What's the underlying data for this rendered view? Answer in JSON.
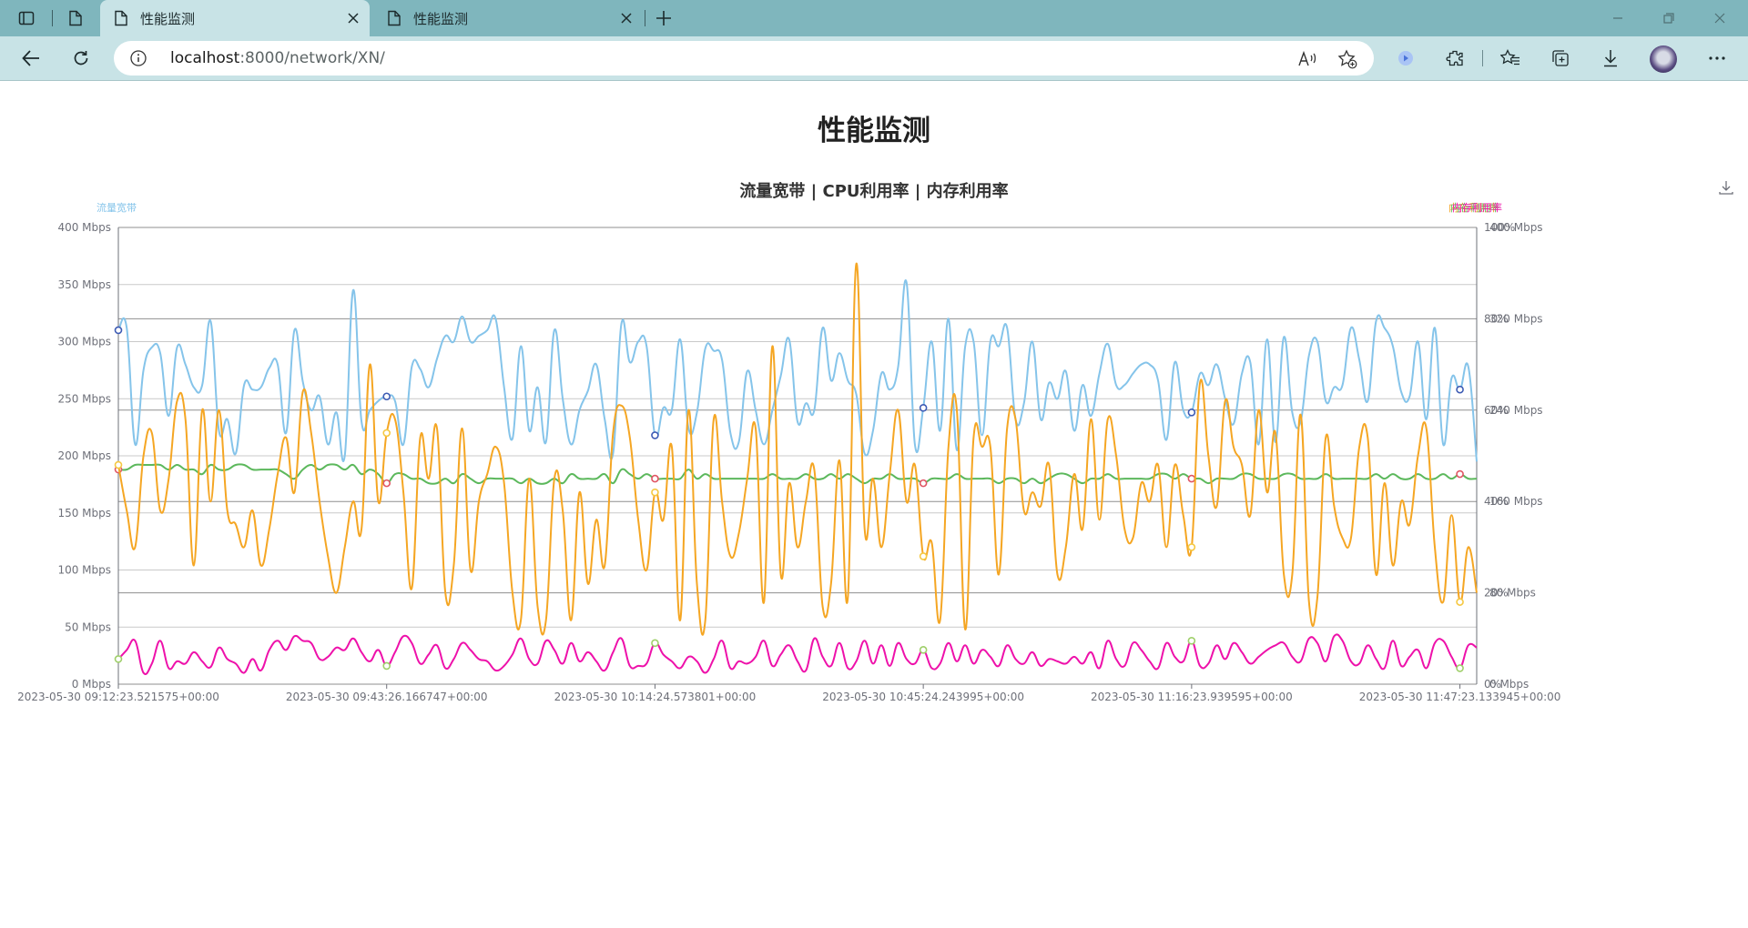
{
  "browser": {
    "tabs": [
      {
        "label": "性能监测",
        "active": true
      },
      {
        "label": "性能监测",
        "active": false
      }
    ],
    "url_host": "localhost",
    "url_rest": ":8000/network/XN/",
    "icons": [
      "tab-actions-icon",
      "page-icon",
      "close-icon",
      "new-tab-icon",
      "minimize-icon",
      "restore-icon",
      "window-close-icon",
      "back-icon",
      "refresh-icon",
      "info-icon",
      "read-aloud-icon",
      "add-favorite-icon",
      "copilot-icon",
      "extensions-icon",
      "favorites-icon",
      "collections-icon",
      "downloads-icon",
      "avatar",
      "more-icon"
    ]
  },
  "page": {
    "title": "性能监测"
  },
  "chart_data": {
    "type": "line",
    "title": "流量宽带 | CPU利用率 | 内存利用率",
    "legend": {
      "left": "流量宽带",
      "right": "内存利用率",
      "placement": "top-left / top-right"
    },
    "colors": {
      "blue": "#85c4ea",
      "orange": "#f5a623",
      "green": "#5cb85c",
      "magenta": "#ee11aa",
      "marker_blue": "#3d5bb4",
      "marker_red": "#e05563",
      "marker_orange": "#f5c842",
      "marker_green": "#9fcf6a"
    },
    "x_labels": [
      "2023-05-30 09:12:23.521575+00:00",
      "2023-05-30 09:43:26.166747+00:00",
      "2023-05-30 10:14:24.573801+00:00",
      "2023-05-30 10:45:24.243995+00:00",
      "2023-05-30 11:16:23.939595+00:00",
      "2023-05-30 11:47:23.133945+00:00"
    ],
    "y_left": {
      "ticks": [
        "0 Mbps",
        "50 Mbps",
        "100 Mbps",
        "150 Mbps",
        "200 Mbps",
        "250 Mbps",
        "300 Mbps",
        "350 Mbps",
        "400 Mbps"
      ],
      "ylim": [
        0,
        400
      ]
    },
    "y_right_percent": {
      "ticks": [
        "0%",
        "20%",
        "40%",
        "60%",
        "80%",
        "100%"
      ],
      "ylim": [
        0,
        100
      ]
    },
    "y_right_mbps": {
      "ticks": [
        "0 Mbps",
        "80 Mbps",
        "160 Mbps",
        "240 Mbps",
        "320 Mbps",
        "400 Mbps"
      ],
      "ylim": [
        0,
        400
      ]
    },
    "series": [
      {
        "name": "流量宽带",
        "color": "#85c4ea",
        "axis": "left",
        "values": [
          310,
          312,
          210,
          275,
          295,
          290,
          235,
          295,
          280,
          260,
          262,
          318,
          222,
          232,
          202,
          262,
          258,
          260,
          277,
          280,
          220,
          310,
          265,
          240,
          252,
          210,
          238,
          200,
          345,
          230,
          240,
          248,
          252,
          248,
          210,
          278,
          276,
          260,
          285,
          305,
          300,
          322,
          300,
          305,
          310,
          320,
          260,
          215,
          296,
          222,
          260,
          212,
          310,
          250,
          210,
          240,
          257,
          280,
          232,
          202,
          316,
          282,
          300,
          296,
          218,
          242,
          240,
          302,
          224,
          238,
          294,
          292,
          284,
          220,
          212,
          274,
          240,
          210,
          240,
          270,
          302,
          230,
          246,
          240,
          312,
          266,
          290,
          266,
          254,
          202,
          222,
          272,
          258,
          278,
          352,
          210,
          242,
          300,
          222,
          320,
          205,
          296,
          300,
          218,
          300,
          296,
          312,
          232,
          246,
          300,
          232,
          264,
          250,
          274,
          222,
          262,
          235,
          272,
          298,
          262,
          262,
          272,
          280,
          280,
          266,
          214,
          282,
          240,
          238,
          272,
          262,
          280,
          250,
          228,
          272,
          282,
          210,
          302,
          212,
          304,
          238,
          230,
          288,
          300,
          248,
          260,
          262,
          312,
          284,
          248,
          318,
          312,
          296,
          256,
          252,
          300,
          232,
          312,
          210,
          268,
          258,
          278,
          195
        ]
      },
      {
        "name": "CPU利用率",
        "color": "#f5a623",
        "axis": "right_percent",
        "values": [
          48,
          38,
          30,
          50,
          55,
          38,
          45,
          62,
          58,
          26,
          60,
          40,
          60,
          38,
          35,
          30,
          38,
          26,
          34,
          46,
          54,
          42,
          64,
          55,
          40,
          28,
          20,
          30,
          40,
          34,
          70,
          40,
          55,
          58,
          42,
          21,
          54,
          45,
          56,
          20,
          26,
          56,
          25,
          40,
          46,
          52,
          44,
          20,
          14,
          45,
          17,
          14,
          45,
          38,
          14,
          42,
          22,
          36,
          26,
          55,
          61,
          54,
          36,
          25,
          42,
          36,
          52,
          14,
          60,
          22,
          14,
          58,
          40,
          28,
          33,
          45,
          56,
          18,
          74,
          24,
          44,
          30,
          40,
          47,
          17,
          22,
          49,
          19,
          92,
          34,
          45,
          30,
          46,
          60,
          40,
          48,
          28,
          31,
          14,
          52,
          60,
          12,
          54,
          52,
          52,
          24,
          56,
          58,
          38,
          42,
          39,
          48,
          24,
          30,
          46,
          34,
          58,
          36,
          58,
          50,
          34,
          32,
          44,
          40,
          48,
          30,
          48,
          37,
          30,
          66,
          50,
          39,
          62,
          52,
          48,
          37,
          60,
          42,
          55,
          24,
          24,
          59,
          18,
          19,
          54,
          39,
          32,
          32,
          52,
          54,
          24,
          44,
          26,
          40,
          35,
          50,
          56,
          30,
          18,
          37,
          18,
          30,
          20
        ]
      },
      {
        "name": "内存利用率",
        "color": "#5cb85c",
        "axis": "right_percent",
        "values": [
          47,
          47,
          48,
          48,
          48,
          48,
          47,
          48,
          47,
          47,
          46,
          48,
          47,
          47,
          48,
          48,
          47,
          47,
          47,
          47,
          46,
          45,
          47,
          48,
          47,
          48,
          48,
          47,
          48,
          46,
          47,
          46,
          44,
          46,
          46,
          45,
          45,
          44,
          44,
          45,
          44,
          46,
          45,
          44,
          45,
          45,
          45,
          45,
          44,
          45,
          44,
          44,
          45,
          44,
          46,
          45,
          45,
          45,
          46,
          44,
          47,
          46,
          45,
          46,
          45,
          45,
          45,
          45,
          47,
          45,
          46,
          45,
          45,
          45,
          45,
          45,
          45,
          45,
          46,
          45,
          45,
          45,
          46,
          45,
          45,
          46,
          45,
          46,
          45,
          44,
          45,
          45,
          46,
          45,
          45,
          45,
          44,
          45,
          45,
          45,
          46,
          45,
          45,
          45,
          45,
          44,
          45,
          45,
          44,
          45,
          44,
          45,
          46,
          46,
          45,
          44,
          45,
          45,
          46,
          45,
          45,
          45,
          45,
          45,
          46,
          46,
          45,
          46,
          45,
          45,
          44,
          45,
          45,
          45,
          46,
          46,
          45,
          45,
          45,
          46,
          46,
          45,
          45,
          45,
          46,
          45,
          45,
          45,
          45,
          45,
          46,
          45,
          46,
          45,
          45,
          46,
          45,
          45,
          46,
          45,
          46,
          45,
          45
        ]
      },
      {
        "name": "",
        "color": "#ee11aa",
        "axis": "left",
        "values": [
          22,
          30,
          38,
          10,
          18,
          38,
          14,
          20,
          18,
          28,
          20,
          15,
          32,
          22,
          18,
          10,
          22,
          12,
          30,
          38,
          30,
          42,
          38,
          36,
          22,
          24,
          32,
          30,
          40,
          28,
          20,
          30,
          16,
          28,
          42,
          36,
          18,
          26,
          34,
          14,
          22,
          36,
          30,
          22,
          20,
          12,
          16,
          26,
          40,
          22,
          18,
          38,
          30,
          18,
          36,
          20,
          28,
          20,
          12,
          28,
          40,
          16,
          16,
          18,
          36,
          26,
          20,
          14,
          24,
          20,
          10,
          22,
          38,
          14,
          20,
          18,
          24,
          38,
          16,
          26,
          34,
          20,
          12,
          40,
          24,
          16,
          36,
          14,
          20,
          38,
          18,
          34,
          16,
          36,
          22,
          18,
          30,
          14,
          18,
          36,
          20,
          34,
          18,
          30,
          24,
          16,
          34,
          22,
          18,
          28,
          16,
          22,
          20,
          18,
          24,
          18,
          28,
          14,
          38,
          22,
          16,
          36,
          30,
          20,
          14,
          36,
          24,
          20,
          38,
          16,
          18,
          34,
          22,
          36,
          28,
          18,
          24,
          30,
          34,
          36,
          24,
          20,
          40,
          36,
          20,
          42,
          38,
          20,
          18,
          34,
          22,
          14,
          38,
          16,
          24,
          30,
          14,
          36,
          38,
          24,
          14,
          34,
          32
        ]
      }
    ],
    "markers": [
      {
        "series": "流量宽带",
        "color": "#3d5bb4"
      },
      {
        "series": "内存利用率",
        "color": "#e05563"
      },
      {
        "series": "CPU利用率",
        "color": "#f5c842"
      },
      {
        "series": "",
        "color": "#9fcf6a"
      }
    ]
  }
}
